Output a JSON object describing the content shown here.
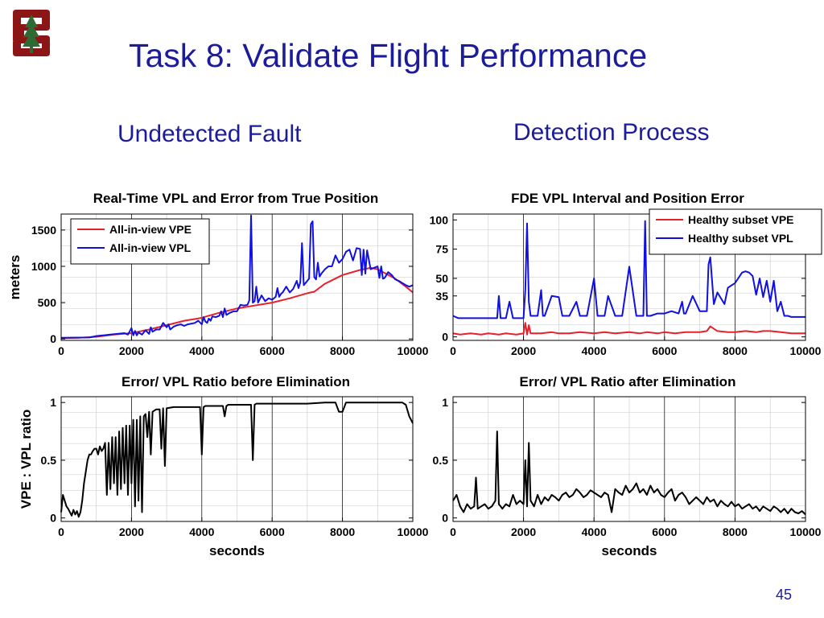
{
  "slide": {
    "title": "Task 8: Validate Flight Performance",
    "heading_left": "Undetected Fault",
    "heading_right": "Detection Process",
    "page_number": "45",
    "title_color": "#1c1c9a",
    "logo_color": "#8c1515"
  },
  "chart_data": [
    {
      "id": "c1",
      "type": "line",
      "title": "Real-Time VPL and Error from True Position",
      "xlabel": "",
      "ylabel": "meters",
      "xlim": [
        0,
        10000
      ],
      "ylim": [
        -20,
        1720
      ],
      "xticks": [
        0,
        2000,
        4000,
        6000,
        8000,
        10000
      ],
      "xtick_labels": [
        "0",
        "2000",
        "4000",
        "6000",
        "8000",
        "10000"
      ],
      "yticks": [
        0,
        500,
        1000,
        1500
      ],
      "ytick_labels": [
        "0",
        "500",
        "1000",
        "1500"
      ],
      "grid": true,
      "legend": "top-left",
      "series": [
        {
          "name": "All-in-view VPE",
          "color": "#e8202a",
          "x": [
            0,
            500,
            1000,
            1500,
            2000,
            2200,
            2500,
            3000,
            3500,
            4000,
            4200,
            4500,
            5000,
            5500,
            6000,
            6500,
            7000,
            7200,
            7500,
            8000,
            8500,
            8800,
            9000,
            9500,
            9800,
            10000
          ],
          "y": [
            10,
            15,
            30,
            60,
            80,
            100,
            130,
            190,
            250,
            290,
            320,
            360,
            420,
            460,
            500,
            560,
            630,
            650,
            760,
            880,
            950,
            980,
            960,
            830,
            720,
            640
          ]
        },
        {
          "name": "All-in-view VPL",
          "color": "#1010e0",
          "x": [
            0,
            800,
            1000,
            1200,
            1400,
            1600,
            1800,
            1900,
            2000,
            2050,
            2100,
            2150,
            2200,
            2300,
            2400,
            2500,
            2550,
            2600,
            2700,
            2800,
            2900,
            3000,
            3050,
            3100,
            3150,
            3200,
            3300,
            3400,
            3500,
            3600,
            3700,
            3800,
            3900,
            4000,
            4050,
            4100,
            4150,
            4200,
            4250,
            4300,
            4400,
            4500,
            4550,
            4600,
            4650,
            4700,
            4800,
            4900,
            5000,
            5100,
            5200,
            5300,
            5350,
            5400,
            5450,
            5500,
            5550,
            5600,
            5700,
            5800,
            5900,
            6000,
            6100,
            6150,
            6200,
            6250,
            6300,
            6400,
            6500,
            6600,
            6700,
            6750,
            6800,
            6850,
            6900,
            7000,
            7050,
            7100,
            7150,
            7200,
            7250,
            7300,
            7350,
            7400,
            7500,
            7600,
            7700,
            7800,
            7900,
            8000,
            8100,
            8200,
            8300,
            8400,
            8500,
            8550,
            8600,
            8650,
            8700,
            8800,
            8900,
            9000,
            9050,
            9100,
            9150,
            9200,
            9300,
            9400,
            9500,
            9600,
            9700,
            9800,
            9900,
            10000
          ],
          "y": [
            15,
            20,
            40,
            50,
            60,
            70,
            80,
            60,
            150,
            50,
            110,
            50,
            90,
            60,
            120,
            70,
            160,
            100,
            130,
            130,
            220,
            160,
            200,
            130,
            150,
            170,
            190,
            200,
            180,
            200,
            210,
            220,
            250,
            200,
            300,
            240,
            220,
            280,
            250,
            310,
            300,
            320,
            380,
            300,
            420,
            330,
            360,
            380,
            380,
            470,
            460,
            470,
            530,
            1700,
            500,
            520,
            720,
            500,
            600,
            520,
            560,
            540,
            580,
            700,
            580,
            620,
            640,
            720,
            640,
            690,
            800,
            700,
            780,
            1320,
            740,
            800,
            830,
            1580,
            1620,
            850,
            820,
            1050,
            860,
            900,
            960,
            1000,
            1000,
            1150,
            1050,
            1100,
            1200,
            1230,
            1080,
            1250,
            1240,
            880,
            1230,
            900,
            1220,
            960,
            980,
            1000,
            840,
            1000,
            830,
            840,
            920,
            880,
            820,
            800,
            770,
            740,
            720,
            740
          ]
        }
      ]
    },
    {
      "id": "c2",
      "type": "line",
      "title": "FDE VPL Interval and Position Error",
      "xlabel": "",
      "ylabel": "",
      "xlim": [
        0,
        10000
      ],
      "ylim": [
        -3,
        105
      ],
      "xticks": [
        0,
        2000,
        4000,
        6000,
        8000,
        10000
      ],
      "xtick_labels": [
        "0",
        "2000",
        "4000",
        "6000",
        "8000",
        "10000"
      ],
      "yticks": [
        0,
        35,
        50,
        75,
        100
      ],
      "ytick_labels": [
        "0",
        "35",
        "50",
        "75",
        "100"
      ],
      "grid": true,
      "legend": "top-right",
      "series": [
        {
          "name": "Healthy subset VPE",
          "color": "#e8202a",
          "x": [
            0,
            200,
            500,
            800,
            1000,
            1300,
            1500,
            1800,
            2000,
            2050,
            2100,
            2150,
            2200,
            2500,
            2800,
            3000,
            3300,
            3600,
            4000,
            4300,
            4600,
            5000,
            5300,
            5500,
            5800,
            6000,
            6300,
            6600,
            7000,
            7200,
            7300,
            7500,
            7800,
            8000,
            8300,
            8600,
            8800,
            9000,
            9300,
            9600,
            10000
          ],
          "y": [
            3,
            2,
            3,
            2,
            3,
            2,
            3,
            2,
            3,
            12,
            2,
            10,
            3,
            3,
            4,
            3,
            3,
            4,
            3,
            4,
            3,
            4,
            3,
            4,
            3,
            4,
            3,
            4,
            4,
            5,
            9,
            5,
            4,
            4,
            5,
            4,
            5,
            5,
            4,
            3,
            3
          ]
        },
        {
          "name": "Healthy subset VPL",
          "color": "#1010e0",
          "x": [
            0,
            150,
            300,
            1000,
            1250,
            1300,
            1350,
            1500,
            1600,
            1700,
            1800,
            2000,
            2050,
            2100,
            2150,
            2200,
            2300,
            2400,
            2500,
            2550,
            2600,
            2800,
            3000,
            3100,
            3300,
            3500,
            3600,
            3800,
            4000,
            4100,
            4300,
            4400,
            4600,
            4800,
            5000,
            5200,
            5300,
            5400,
            5450,
            5500,
            5600,
            5800,
            6000,
            6200,
            6400,
            6500,
            6550,
            6600,
            6800,
            7000,
            7100,
            7200,
            7250,
            7300,
            7400,
            7500,
            7700,
            7800,
            8000,
            8200,
            8300,
            8400,
            8500,
            8600,
            8700,
            8800,
            8900,
            9000,
            9100,
            9200,
            9300,
            9400,
            9500,
            9600,
            10000
          ],
          "y": [
            18,
            16,
            16,
            16,
            16,
            35,
            16,
            16,
            30,
            16,
            16,
            16,
            40,
            97,
            30,
            18,
            18,
            18,
            40,
            18,
            18,
            35,
            34,
            18,
            18,
            30,
            18,
            18,
            50,
            18,
            18,
            35,
            18,
            18,
            60,
            18,
            18,
            18,
            99,
            18,
            18,
            20,
            20,
            22,
            20,
            30,
            20,
            20,
            35,
            22,
            22,
            22,
            62,
            68,
            28,
            38,
            28,
            42,
            46,
            55,
            56,
            55,
            52,
            36,
            50,
            34,
            48,
            30,
            48,
            22,
            30,
            18,
            18,
            17,
            17
          ]
        }
      ]
    },
    {
      "id": "c3",
      "type": "line",
      "title": "Error/ VPL Ratio before Elimination",
      "xlabel": "seconds",
      "ylabel": "VPE : VPL ratio",
      "xlim": [
        0,
        10000
      ],
      "ylim": [
        -0.03,
        1.05
      ],
      "xticks": [
        0,
        2000,
        4000,
        6000,
        8000,
        10000
      ],
      "xtick_labels": [
        "0",
        "2000",
        "4000",
        "6000",
        "8000",
        "10000"
      ],
      "yticks": [
        0,
        0.5,
        1
      ],
      "ytick_labels": [
        "0",
        "0.5",
        "1"
      ],
      "grid": true,
      "series": [
        {
          "name": "",
          "color": "#000000",
          "x": [
            0,
            50,
            100,
            150,
            200,
            250,
            300,
            350,
            400,
            450,
            500,
            550,
            600,
            650,
            700,
            750,
            800,
            850,
            900,
            950,
            1000,
            1050,
            1100,
            1150,
            1200,
            1250,
            1300,
            1350,
            1400,
            1450,
            1500,
            1550,
            1600,
            1650,
            1700,
            1750,
            1800,
            1850,
            1900,
            1950,
            2000,
            2050,
            2100,
            2150,
            2200,
            2250,
            2300,
            2350,
            2400,
            2450,
            2500,
            2550,
            2600,
            2700,
            2800,
            2850,
            2900,
            2950,
            3000,
            3200,
            3400,
            3600,
            3800,
            3950,
            4000,
            4050,
            4100,
            4300,
            4500,
            4600,
            4650,
            4700,
            4750,
            4800,
            5000,
            5200,
            5400,
            5450,
            5500,
            5550,
            5600,
            6000,
            6500,
            7000,
            7500,
            7800,
            7900,
            8000,
            8100,
            8200,
            8300,
            8600,
            9000,
            9400,
            9700,
            9800,
            9900,
            10000
          ],
          "y": [
            0.05,
            0.2,
            0.15,
            0.1,
            0.08,
            0.05,
            0.02,
            0.07,
            0.03,
            0.06,
            0.01,
            0.05,
            0.15,
            0.3,
            0.4,
            0.5,
            0.55,
            0.55,
            0.58,
            0.6,
            0.6,
            0.55,
            0.62,
            0.58,
            0.6,
            0.65,
            0.2,
            0.65,
            0.25,
            0.7,
            0.3,
            0.7,
            0.2,
            0.75,
            0.25,
            0.78,
            0.3,
            0.8,
            0.2,
            0.8,
            0.3,
            0.85,
            0.1,
            0.85,
            0.15,
            0.88,
            0.05,
            0.88,
            0.9,
            0.7,
            0.92,
            0.55,
            0.92,
            0.94,
            0.94,
            0.6,
            0.95,
            0.45,
            0.95,
            0.96,
            0.96,
            0.96,
            0.96,
            0.96,
            0.55,
            0.96,
            0.97,
            0.97,
            0.97,
            0.97,
            0.88,
            0.97,
            0.98,
            0.98,
            0.98,
            0.98,
            0.98,
            0.5,
            0.98,
            0.99,
            0.99,
            0.99,
            0.99,
            0.99,
            1.0,
            1.0,
            0.92,
            0.92,
            1.0,
            1.0,
            1.0,
            1.0,
            1.0,
            1.0,
            1.0,
            0.98,
            0.88,
            0.82
          ]
        }
      ]
    },
    {
      "id": "c4",
      "type": "line",
      "title": "Error/ VPL Ratio after Elimination",
      "xlabel": "seconds",
      "ylabel": "",
      "xlim": [
        0,
        10000
      ],
      "ylim": [
        -0.03,
        1.05
      ],
      "xticks": [
        0,
        2000,
        4000,
        6000,
        8000,
        10000
      ],
      "xtick_labels": [
        "0",
        "2000",
        "4000",
        "6000",
        "8000",
        "10000"
      ],
      "yticks": [
        0,
        0.5,
        1
      ],
      "ytick_labels": [
        "0",
        "0.5",
        "1"
      ],
      "grid": true,
      "series": [
        {
          "name": "",
          "color": "#000000",
          "x": [
            0,
            100,
            200,
            300,
            400,
            500,
            600,
            650,
            700,
            800,
            900,
            1000,
            1100,
            1200,
            1250,
            1300,
            1350,
            1400,
            1500,
            1600,
            1700,
            1800,
            1900,
            2000,
            2050,
            2100,
            2150,
            2200,
            2300,
            2400,
            2500,
            2600,
            2700,
            2800,
            2900,
            3000,
            3100,
            3200,
            3300,
            3400,
            3500,
            3600,
            3700,
            3800,
            3900,
            4000,
            4100,
            4200,
            4300,
            4400,
            4500,
            4600,
            4700,
            4800,
            4900,
            5000,
            5100,
            5200,
            5300,
            5400,
            5500,
            5600,
            5700,
            5800,
            5900,
            6000,
            6100,
            6200,
            6300,
            6400,
            6500,
            6600,
            6700,
            6800,
            6900,
            7000,
            7100,
            7200,
            7300,
            7400,
            7500,
            7600,
            7700,
            7800,
            7900,
            8000,
            8100,
            8200,
            8300,
            8400,
            8500,
            8600,
            8700,
            8800,
            8900,
            9000,
            9100,
            9200,
            9300,
            9400,
            9500,
            9600,
            9700,
            9800,
            9900,
            10000
          ],
          "y": [
            0.15,
            0.2,
            0.1,
            0.05,
            0.12,
            0.08,
            0.1,
            0.35,
            0.08,
            0.1,
            0.12,
            0.08,
            0.1,
            0.15,
            0.75,
            0.12,
            0.1,
            0.08,
            0.12,
            0.1,
            0.2,
            0.12,
            0.15,
            0.12,
            0.5,
            0.1,
            0.65,
            0.15,
            0.1,
            0.2,
            0.12,
            0.18,
            0.15,
            0.2,
            0.18,
            0.15,
            0.2,
            0.22,
            0.18,
            0.2,
            0.25,
            0.22,
            0.18,
            0.2,
            0.24,
            0.22,
            0.2,
            0.18,
            0.22,
            0.2,
            0.05,
            0.25,
            0.22,
            0.2,
            0.28,
            0.22,
            0.25,
            0.3,
            0.22,
            0.25,
            0.2,
            0.28,
            0.22,
            0.25,
            0.2,
            0.18,
            0.22,
            0.25,
            0.15,
            0.2,
            0.22,
            0.18,
            0.12,
            0.15,
            0.18,
            0.15,
            0.12,
            0.18,
            0.14,
            0.16,
            0.1,
            0.15,
            0.12,
            0.1,
            0.14,
            0.1,
            0.12,
            0.08,
            0.1,
            0.12,
            0.08,
            0.1,
            0.06,
            0.1,
            0.08,
            0.06,
            0.1,
            0.08,
            0.05,
            0.08,
            0.04,
            0.08,
            0.05,
            0.04,
            0.06,
            0.03
          ]
        }
      ]
    }
  ]
}
